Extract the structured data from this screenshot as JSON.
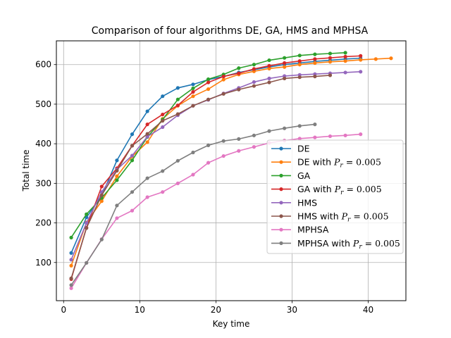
{
  "chart_data": {
    "type": "line",
    "title": "Comparison of four algorithms DE, GA, HMS and MPHSA",
    "xlabel": "Key time",
    "ylabel": "Total time",
    "xlim": [
      -0.95,
      44.95
    ],
    "ylim": [
      3.5,
      660
    ],
    "xticks": [
      0,
      10,
      20,
      30,
      40
    ],
    "yticks": [
      100,
      200,
      300,
      400,
      500,
      600
    ],
    "grid": true,
    "legend_position": "center-right",
    "series": [
      {
        "name": "DE",
        "legend_main": "DE",
        "legend_sub": "",
        "color": "#1f77b4",
        "x": [
          1,
          3,
          5,
          7,
          9,
          11,
          13,
          15,
          17,
          19,
          21,
          23,
          25,
          27,
          29,
          31,
          33,
          35,
          37,
          39
        ],
        "y": [
          124,
          214,
          268,
          358,
          424,
          482,
          520,
          541,
          550,
          562,
          570,
          580,
          587,
          594,
          600,
          604,
          608,
          611,
          614,
          616
        ]
      },
      {
        "name": "DE with P_r = 0.005",
        "legend_main": "DE with ",
        "legend_sub": "= 0.005",
        "color": "#ff7f0e",
        "x": [
          1,
          3,
          5,
          7,
          9,
          11,
          13,
          15,
          17,
          19,
          21,
          23,
          25,
          27,
          29,
          31,
          33,
          35,
          37,
          39,
          41,
          43
        ],
        "y": [
          92,
          201,
          255,
          318,
          368,
          404,
          463,
          496,
          520,
          538,
          562,
          575,
          583,
          590,
          594,
          600,
          604,
          607,
          609,
          612,
          614,
          616
        ]
      },
      {
        "name": "GA",
        "legend_main": "GA",
        "legend_sub": "",
        "color": "#2ca02c",
        "x": [
          1,
          3,
          5,
          7,
          9,
          11,
          13,
          15,
          17,
          19,
          21,
          23,
          25,
          27,
          29,
          31,
          33,
          35,
          37
        ],
        "y": [
          163,
          222,
          263,
          308,
          358,
          417,
          461,
          512,
          540,
          563,
          575,
          591,
          600,
          611,
          617,
          623,
          626,
          628,
          630
        ]
      },
      {
        "name": "GA with P_r = 0.005",
        "legend_main": "GA with ",
        "legend_sub": "= 0.005",
        "color": "#d62728",
        "x": [
          1,
          3,
          5,
          7,
          9,
          11,
          13,
          15,
          17,
          19,
          21,
          23,
          25,
          27,
          29,
          31,
          33,
          35,
          37,
          39
        ],
        "y": [
          58,
          188,
          292,
          338,
          395,
          449,
          474,
          497,
          531,
          555,
          570,
          578,
          589,
          597,
          604,
          609,
          614,
          617,
          620,
          622
        ]
      },
      {
        "name": "HMS",
        "legend_main": "HMS",
        "legend_sub": "",
        "color": "#9467bd",
        "x": [
          1,
          3,
          5,
          7,
          9,
          11,
          13,
          15,
          17,
          19,
          21,
          23,
          25,
          27,
          29,
          31,
          33,
          35,
          37,
          39
        ],
        "y": [
          107,
          200,
          278,
          335,
          370,
          418,
          442,
          472,
          496,
          511,
          527,
          541,
          556,
          565,
          571,
          574,
          576,
          578,
          580,
          582
        ]
      },
      {
        "name": "HMS with P_r = 0.005",
        "legend_main": "HMS with ",
        "legend_sub": "= 0.005",
        "color": "#8c564b",
        "x": [
          1,
          3,
          5,
          7,
          9,
          11,
          13,
          15,
          17,
          19,
          21,
          23,
          25,
          27,
          29,
          31,
          33,
          35
        ],
        "y": [
          60,
          187,
          270,
          332,
          395,
          425,
          458,
          475,
          496,
          512,
          526,
          537,
          546,
          555,
          565,
          568,
          570,
          573
        ]
      },
      {
        "name": "MPHSA",
        "legend_main": "MPHSA",
        "legend_sub": "",
        "color": "#e377c2",
        "x": [
          1,
          3,
          5,
          7,
          9,
          11,
          13,
          15,
          17,
          19,
          21,
          23,
          25,
          27,
          29,
          31,
          33,
          35,
          37,
          39
        ],
        "y": [
          35,
          99,
          159,
          212,
          231,
          265,
          278,
          300,
          322,
          352,
          369,
          382,
          392,
          402,
          408,
          413,
          416,
          419,
          421,
          424
        ]
      },
      {
        "name": "MPHSA with P_r = 0.005",
        "legend_main": "MPHSA with ",
        "legend_sub": "= 0.005",
        "color": "#7f7f7f",
        "x": [
          1,
          3,
          5,
          7,
          9,
          11,
          13,
          15,
          17,
          19,
          21,
          23,
          25,
          27,
          29,
          31,
          33
        ],
        "y": [
          43,
          99,
          158,
          244,
          278,
          313,
          331,
          357,
          378,
          396,
          407,
          412,
          421,
          432,
          439,
          445,
          449
        ]
      }
    ]
  }
}
